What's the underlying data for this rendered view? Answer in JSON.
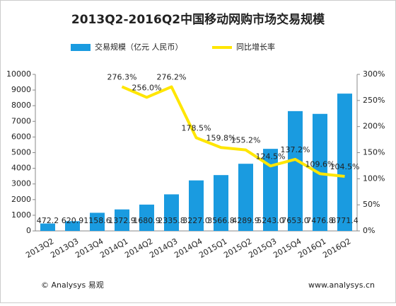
{
  "chart_data": {
    "type": "bar+line",
    "title": "2013Q2-2016Q2中国移动网购市场交易规模",
    "categories": [
      "2013Q2",
      "2013Q3",
      "2013Q4",
      "2014Q1",
      "2014Q2",
      "2014Q3",
      "2014Q4",
      "2015Q1",
      "2015Q2",
      "2015Q3",
      "2015Q4",
      "2016Q1",
      "2016Q2"
    ],
    "series": [
      {
        "name": "交易规模（亿元 人民币）",
        "type": "bar",
        "color": "#1a9be0",
        "values": [
          472.2,
          620.9,
          1158.6,
          1372.9,
          1680.9,
          2335.8,
          3227.0,
          3566.8,
          4289.9,
          5243.0,
          7653.0,
          7476.8,
          8771.4
        ],
        "value_labels": [
          "472.2",
          "620.9",
          "1158.6",
          "1372.9",
          "1680.9",
          "2335.8",
          "3227.0",
          "3566.8",
          "4289.9",
          "5243.0",
          "7653.0",
          "7476.8",
          "8771.4"
        ]
      },
      {
        "name": "同比增长率",
        "type": "line",
        "axis": "y2",
        "color": "#ffe600",
        "values": [
          null,
          null,
          null,
          276.3,
          256.0,
          276.2,
          178.5,
          159.8,
          155.2,
          124.5,
          137.2,
          109.6,
          104.5
        ],
        "value_labels": [
          null,
          null,
          null,
          "276.3%",
          "256.0%",
          "276.2%",
          "178.5%",
          "159.8%",
          "155.2%",
          "124.5%",
          "137.2%",
          "109.6%",
          "104.5%"
        ]
      }
    ],
    "ylim": [
      0,
      10000
    ],
    "yticks": [
      0,
      1000,
      2000,
      3000,
      4000,
      5000,
      6000,
      7000,
      8000,
      9000,
      10000
    ],
    "y2lim": [
      0,
      300
    ],
    "y2ticks": [
      {
        "value": 0,
        "label": "0%"
      },
      {
        "value": 50,
        "label": "50%"
      },
      {
        "value": 100,
        "label": "100%"
      },
      {
        "value": 150,
        "label": "150%"
      },
      {
        "value": 200,
        "label": "200%"
      },
      {
        "value": 250,
        "label": "250%"
      },
      {
        "value": 300,
        "label": "300%"
      }
    ],
    "legend": "top",
    "footer_left": "© Analysys 易观",
    "footer_right": "www.analysys.cn"
  }
}
